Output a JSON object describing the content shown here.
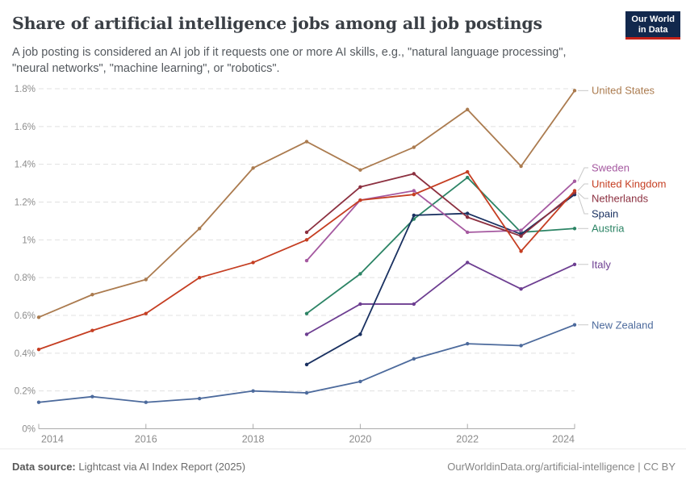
{
  "header": {
    "title": "Share of artificial intelligence jobs among all job postings",
    "subtitle_line1": "A job posting is considered an AI job if it requests one or more AI skills, e.g., \"natural language processing\",",
    "subtitle_line2": "\"neural networks\", \"machine learning\", or \"robotics\".",
    "logo": {
      "line1": "Our World",
      "line2": "in Data",
      "bg_color": "#12284D",
      "accent_color": "#C42118"
    }
  },
  "footer": {
    "source_label": "Data source:",
    "source_value": " Lightcast via AI Index Report (2025)",
    "credit": "OurWorldinData.org/artificial-intelligence | CC BY"
  },
  "chart_data": {
    "type": "line",
    "title": "Share of artificial intelligence jobs among all job postings",
    "x": [
      2014,
      2015,
      2016,
      2017,
      2018,
      2019,
      2020,
      2021,
      2022,
      2023,
      2024
    ],
    "x_ticks": [
      2014,
      2016,
      2018,
      2020,
      2022,
      2024
    ],
    "y_ticks": [
      "0%",
      "0.2%",
      "0.4%",
      "0.6%",
      "0.8%",
      "1%",
      "1.2%",
      "1.4%",
      "1.6%",
      "1.8%"
    ],
    "ylim": [
      0,
      1.8
    ],
    "grid": "horizontal-dashed",
    "legend_position": "right-edge-labels",
    "series": [
      {
        "name": "United States",
        "color": "#AB7B4F",
        "values": [
          0.59,
          0.71,
          0.79,
          1.06,
          1.38,
          1.52,
          1.37,
          1.49,
          1.69,
          1.39,
          1.79
        ]
      },
      {
        "name": "Sweden",
        "color": "#A559A0",
        "values": [
          null,
          null,
          null,
          null,
          null,
          0.89,
          1.21,
          1.26,
          1.04,
          1.05,
          1.31
        ]
      },
      {
        "name": "United Kingdom",
        "color": "#C53E22",
        "values": [
          0.42,
          0.52,
          0.61,
          0.8,
          0.88,
          1.0,
          1.21,
          1.24,
          1.36,
          0.94,
          1.26
        ]
      },
      {
        "name": "Netherlands",
        "color": "#8C3040",
        "values": [
          null,
          null,
          null,
          null,
          null,
          1.04,
          1.28,
          1.35,
          1.12,
          1.02,
          1.25
        ]
      },
      {
        "name": "Spain",
        "color": "#1A3161",
        "values": [
          null,
          null,
          null,
          null,
          null,
          0.34,
          0.5,
          1.13,
          1.14,
          1.03,
          1.24
        ]
      },
      {
        "name": "Austria",
        "color": "#2C8465",
        "values": [
          null,
          null,
          null,
          null,
          null,
          0.61,
          0.82,
          1.11,
          1.33,
          1.04,
          1.06
        ]
      },
      {
        "name": "Italy",
        "color": "#6D3E91",
        "values": [
          null,
          null,
          null,
          null,
          null,
          0.5,
          0.66,
          0.66,
          0.88,
          0.74,
          0.87
        ]
      },
      {
        "name": "New Zealand",
        "color": "#4C6A9C",
        "values": [
          0.14,
          0.17,
          0.14,
          0.16,
          0.2,
          0.19,
          0.25,
          0.37,
          0.45,
          0.44,
          0.55
        ]
      }
    ]
  }
}
